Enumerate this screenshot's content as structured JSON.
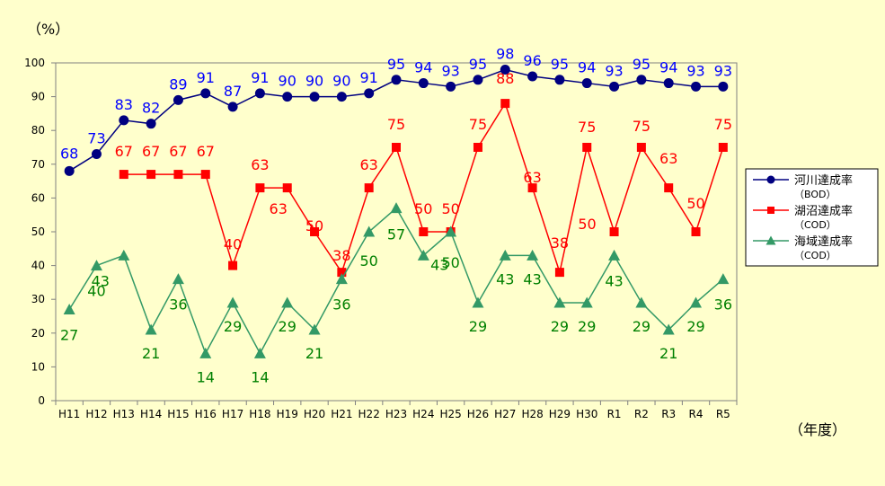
{
  "chart_data": {
    "type": "line",
    "ylabel": "（%）",
    "xlabel": "（年度）",
    "ylim": [
      0,
      100
    ],
    "yticks": [
      0,
      10,
      20,
      30,
      40,
      50,
      60,
      70,
      80,
      90,
      100
    ],
    "grid": false,
    "legend_position": "right",
    "categories": [
      "H11",
      "H12",
      "H13",
      "H14",
      "H15",
      "H16",
      "H17",
      "H18",
      "H19",
      "H20",
      "H21",
      "H22",
      "H23",
      "H24",
      "H25",
      "H26",
      "H27",
      "H28",
      "H29",
      "H30",
      "R1",
      "R2",
      "R3",
      "R4",
      "R5"
    ],
    "series": [
      {
        "name": "河川達成率",
        "sub": "（BOD）",
        "color": "#000080",
        "label_color": "#0000FF",
        "marker": "circle",
        "values": [
          68,
          73,
          83,
          82,
          89,
          91,
          87,
          91,
          90,
          90,
          90,
          91,
          95,
          94,
          93,
          95,
          98,
          96,
          95,
          94,
          93,
          95,
          94,
          93,
          93
        ]
      },
      {
        "name": "湖沼達成率",
        "sub": "（COD）",
        "color": "#FF0000",
        "label_color": "#FF0000",
        "marker": "square",
        "values": [
          null,
          null,
          67,
          67,
          67,
          67,
          40,
          63,
          63,
          50,
          38,
          63,
          75,
          50,
          50,
          75,
          88,
          63,
          38,
          75,
          50,
          75,
          63,
          50,
          75
        ]
      },
      {
        "name": "海域達成率",
        "sub": "（COD）",
        "color": "#339966",
        "label_color": "#008000",
        "marker": "triangle",
        "values": [
          27,
          40,
          43,
          21,
          36,
          14,
          29,
          14,
          29,
          21,
          36,
          50,
          57,
          43,
          50,
          29,
          43,
          43,
          29,
          29,
          43,
          29,
          21,
          29,
          36
        ]
      }
    ]
  }
}
